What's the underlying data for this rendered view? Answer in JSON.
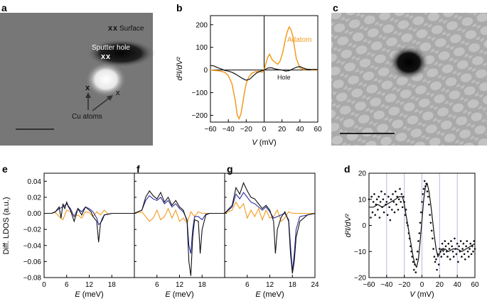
{
  "panels": {
    "a": {
      "letter": "a",
      "labels": {
        "surface": "Surface",
        "sputter_hole": "Sputter hole",
        "cu_atoms": "Cu atoms"
      },
      "markers": "x"
    },
    "b": {
      "letter": "b",
      "legend": {
        "adatom": "Adatom",
        "hole": "Hole"
      }
    },
    "c": {
      "letter": "c"
    },
    "e": {
      "letter": "e"
    },
    "f": {
      "letter": "f"
    },
    "g": {
      "letter": "g"
    },
    "d": {
      "letter": "d"
    }
  },
  "colors": {
    "adatom": "#f39a1e",
    "hole": "#111111",
    "blue": "#2b2fa0",
    "gridline": "#b8b8e8"
  },
  "chart_data": [
    {
      "id": "b",
      "type": "line",
      "xlabel": "V (mV)",
      "ylabel": "d²I/dV²",
      "xlim": [
        -60,
        60
      ],
      "ylim": [
        -230,
        240
      ],
      "xticks": [
        -60,
        -40,
        -20,
        0,
        20,
        40,
        60
      ],
      "yticks": [
        -200,
        -100,
        0,
        100,
        200
      ],
      "series": [
        {
          "name": "Adatom",
          "color": "#f39a1e",
          "x": [
            -60,
            -50,
            -44,
            -40,
            -36,
            -32,
            -30,
            -28,
            -26,
            -24,
            -22,
            -20,
            -17,
            -14,
            -10,
            -6,
            -2,
            0,
            2,
            4,
            6,
            9,
            12,
            15,
            18,
            21,
            24,
            26,
            28,
            30,
            32,
            34,
            36,
            40,
            44,
            50,
            56,
            60
          ],
          "y": [
            0,
            -4,
            -10,
            -25,
            -60,
            -140,
            -200,
            -215,
            -195,
            -150,
            -100,
            -60,
            -30,
            -15,
            -8,
            -6,
            -10,
            0,
            30,
            55,
            70,
            45,
            35,
            25,
            40,
            80,
            140,
            170,
            190,
            178,
            150,
            100,
            50,
            10,
            2,
            3,
            0,
            0
          ]
        },
        {
          "name": "Hole",
          "color": "#111111",
          "x": [
            -60,
            -56,
            -52,
            -48,
            -44,
            -40,
            -36,
            -32,
            -28,
            -24,
            -20,
            -16,
            -12,
            -8,
            -4,
            0,
            4,
            8,
            12,
            16,
            20,
            24,
            28,
            32,
            36,
            40,
            44,
            48,
            52,
            56,
            60
          ],
          "y": [
            20,
            18,
            10,
            5,
            -2,
            -5,
            -10,
            -18,
            -28,
            -38,
            -45,
            -40,
            -25,
            -12,
            -5,
            0,
            8,
            10,
            5,
            2,
            0,
            -5,
            -3,
            5,
            12,
            15,
            8,
            3,
            2,
            3,
            2
          ]
        }
      ]
    },
    {
      "id": "e",
      "type": "line",
      "xlabel": "E (meV)",
      "ylabel": "Diff. LDOS (a.u.)",
      "xlim": [
        0,
        24
      ],
      "ylim": [
        -0.08,
        0.05
      ],
      "xticks": [
        0,
        6,
        12,
        18
      ],
      "xtick_labels": [
        "0",
        "6",
        "12",
        "18"
      ],
      "yticks": [
        -0.08,
        -0.06,
        -0.04,
        -0.02,
        0.0,
        0.02,
        0.04
      ],
      "ytick_labels": [
        "−0.08",
        "−0.06",
        "−0.04",
        "−0.02",
        "0.00",
        "0.02",
        "0.04"
      ],
      "series": [
        {
          "name": "black",
          "color": "#111111",
          "x": [
            0,
            2,
            3,
            4,
            4.5,
            5,
            5.5,
            6,
            6.5,
            7,
            8,
            9,
            10,
            11,
            12,
            12.5,
            13,
            14,
            14.5,
            15,
            15.5,
            16,
            17,
            18,
            20,
            24
          ],
          "y": [
            0,
            0,
            0.002,
            0.008,
            -0.006,
            0.012,
            0.006,
            0.014,
            0.008,
            0.004,
            -0.01,
            0.006,
            -0.002,
            0.008,
            0.004,
            0.002,
            -0.004,
            -0.01,
            -0.036,
            -0.012,
            -0.008,
            -0.002,
            -0.001,
            0,
            0,
            0
          ]
        },
        {
          "name": "blue",
          "color": "#2b2fa0",
          "x": [
            0,
            2,
            3,
            4,
            5,
            6,
            7,
            8,
            9,
            10,
            11,
            12,
            13,
            14,
            14.5,
            15,
            15.5,
            16,
            17,
            18,
            20,
            24
          ],
          "y": [
            0,
            0,
            0.002,
            0.006,
            0.008,
            0.012,
            0.006,
            -0.004,
            0.006,
            0.002,
            0.008,
            0.006,
            0.002,
            -0.006,
            -0.014,
            -0.012,
            -0.006,
            -0.002,
            -0.001,
            0,
            0,
            0
          ]
        },
        {
          "name": "orange",
          "color": "#f39a1e",
          "x": [
            0,
            2,
            3,
            4,
            5,
            6,
            7,
            8,
            9,
            10,
            11,
            12,
            13,
            14,
            15,
            16,
            17,
            18,
            20,
            24
          ],
          "y": [
            0,
            0,
            0.001,
            -0.004,
            -0.008,
            0.004,
            0.002,
            -0.004,
            -0.002,
            -0.006,
            0.002,
            0.001,
            -0.004,
            0.002,
            -0.002,
            0.004,
            -0.001,
            0,
            0,
            0
          ]
        }
      ]
    },
    {
      "id": "f",
      "type": "line",
      "xlabel": "E (meV)",
      "xlim": [
        0,
        24
      ],
      "ylim": [
        -0.08,
        0.05
      ],
      "xticks": [
        0,
        6,
        12,
        18
      ],
      "xtick_labels": [
        "",
        "6",
        "12",
        "18"
      ],
      "series": [
        {
          "name": "black",
          "color": "#111111",
          "x": [
            0,
            2,
            3,
            4,
            5,
            6,
            7,
            8,
            9,
            10,
            11,
            12,
            13,
            14,
            14.5,
            15,
            15.5,
            16,
            17,
            17.5,
            18,
            19,
            20,
            22,
            24
          ],
          "y": [
            0,
            0.004,
            0.02,
            0.028,
            0.022,
            0.018,
            0.026,
            0.014,
            0.02,
            0.01,
            0.016,
            0.008,
            0.004,
            -0.01,
            -0.06,
            -0.078,
            -0.03,
            -0.008,
            -0.01,
            -0.05,
            -0.02,
            -0.002,
            0,
            0,
            0
          ]
        },
        {
          "name": "blue",
          "color": "#2b2fa0",
          "x": [
            0,
            2,
            3,
            4,
            5,
            6,
            7,
            8,
            9,
            10,
            11,
            12,
            13,
            14,
            14.5,
            15,
            15.5,
            16,
            17,
            18,
            19,
            20,
            24
          ],
          "y": [
            0,
            0.004,
            0.016,
            0.022,
            0.018,
            0.016,
            0.02,
            0.012,
            0.016,
            0.008,
            0.012,
            0.006,
            0.002,
            -0.008,
            -0.04,
            -0.05,
            -0.02,
            -0.004,
            -0.004,
            -0.008,
            -0.001,
            0,
            0
          ]
        },
        {
          "name": "orange",
          "color": "#f39a1e",
          "x": [
            0,
            2,
            3,
            4,
            5,
            6,
            7,
            8,
            9,
            10,
            11,
            12,
            13,
            14,
            15,
            16,
            17,
            18,
            20,
            24
          ],
          "y": [
            0,
            0.002,
            -0.004,
            -0.01,
            -0.006,
            0.004,
            -0.008,
            -0.004,
            0.006,
            -0.006,
            0.004,
            -0.01,
            -0.006,
            -0.012,
            0.002,
            -0.004,
            0.002,
            0,
            0,
            0
          ]
        }
      ]
    },
    {
      "id": "g",
      "type": "line",
      "xlabel": "E (meV)",
      "xlim": [
        0,
        24
      ],
      "ylim": [
        -0.08,
        0.05
      ],
      "xticks": [
        0,
        6,
        12,
        18,
        24
      ],
      "xtick_labels": [
        "",
        "6",
        "12",
        "18",
        "24"
      ],
      "series": [
        {
          "name": "black",
          "color": "#111111",
          "x": [
            0,
            2,
            3,
            4,
            5,
            6,
            7,
            8,
            9,
            10,
            11,
            12,
            13,
            13.5,
            14,
            15,
            16,
            17,
            17.5,
            18,
            18.5,
            19,
            20,
            22,
            24
          ],
          "y": [
            0,
            0.01,
            0.032,
            0.024,
            0.038,
            0.028,
            0.02,
            0.018,
            0.012,
            0.006,
            0.01,
            0.004,
            -0.01,
            -0.05,
            -0.02,
            -0.005,
            0.002,
            -0.01,
            -0.05,
            -0.075,
            -0.06,
            -0.03,
            -0.01,
            -0.002,
            0
          ]
        },
        {
          "name": "blue",
          "color": "#2b2fa0",
          "x": [
            0,
            2,
            3,
            4,
            5,
            6,
            7,
            8,
            9,
            10,
            11,
            12,
            13,
            14,
            15,
            16,
            17,
            17.5,
            18,
            18.5,
            19,
            20,
            24
          ],
          "y": [
            0,
            0.008,
            0.024,
            0.018,
            0.026,
            0.02,
            0.014,
            0.012,
            0.008,
            0.004,
            0.008,
            0.002,
            -0.006,
            -0.004,
            -0.002,
            0,
            -0.008,
            -0.04,
            -0.072,
            -0.05,
            -0.02,
            -0.004,
            0
          ]
        },
        {
          "name": "orange",
          "color": "#f39a1e",
          "x": [
            0,
            2,
            3,
            4,
            5,
            6,
            7,
            8,
            9,
            10,
            11,
            12,
            13,
            14,
            15,
            16,
            17,
            18,
            20,
            24
          ],
          "y": [
            0,
            0.004,
            0.014,
            0.006,
            0.012,
            -0.006,
            0.004,
            -0.004,
            0.006,
            -0.008,
            0.004,
            -0.006,
            -0.004,
            0.004,
            -0.01,
            -0.006,
            0.002,
            0,
            0,
            0
          ]
        }
      ]
    },
    {
      "id": "d",
      "type": "scatter",
      "xlabel": "V (mV)",
      "ylabel": "d²I/dV²",
      "xlim": [
        -60,
        60
      ],
      "ylim": [
        -20,
        20
      ],
      "xticks": [
        -60,
        -40,
        -20,
        0,
        20,
        40,
        60
      ],
      "yticks": [
        -20,
        -10,
        0,
        10,
        20
      ],
      "vlines": [
        -40,
        -20,
        0,
        20,
        40
      ],
      "points": {
        "x": [
          -60,
          -58,
          -57,
          -56,
          -55,
          -54,
          -53,
          -52,
          -51,
          -50,
          -49,
          -48,
          -47,
          -46,
          -45,
          -44,
          -43,
          -42,
          -41,
          -40,
          -39,
          -38,
          -37,
          -36,
          -35,
          -34,
          -33,
          -32,
          -31,
          -30,
          -29,
          -28,
          -27,
          -26,
          -25,
          -24,
          -23,
          -22,
          -21,
          -20,
          -19,
          -18,
          -17,
          -16,
          -15,
          -14,
          -13,
          -12,
          -11,
          -10,
          -9,
          -8,
          -7,
          -6,
          -5,
          -4,
          -3,
          -2,
          -1,
          0,
          1,
          2,
          3,
          4,
          5,
          6,
          7,
          8,
          9,
          10,
          11,
          12,
          13,
          14,
          15,
          16,
          17,
          18,
          19,
          20,
          21,
          22,
          23,
          24,
          25,
          26,
          27,
          28,
          29,
          30,
          31,
          32,
          33,
          34,
          35,
          36,
          37,
          38,
          39,
          40,
          41,
          42,
          43,
          44,
          45,
          46,
          47,
          48,
          49,
          50,
          51,
          52,
          53,
          54,
          55,
          56,
          57,
          58,
          59,
          60
        ],
        "y": [
          10,
          3,
          11,
          5,
          9,
          12,
          4,
          8,
          10,
          6,
          11,
          3,
          9,
          13,
          7,
          10,
          5,
          12,
          8,
          9,
          4,
          11,
          7,
          2,
          10,
          6,
          12,
          9,
          5,
          13,
          8,
          11,
          6,
          10,
          14,
          9,
          12,
          7,
          11,
          9,
          4,
          6,
          1,
          0,
          -3,
          -5,
          -8,
          -10,
          -12,
          -14,
          -17,
          -15,
          -18,
          -13,
          -10,
          -6,
          -3,
          1,
          5,
          9,
          12,
          14,
          17,
          15,
          16,
          13,
          11,
          8,
          4,
          1,
          -2,
          -5,
          -9,
          -12,
          -14,
          -13,
          -17,
          -11,
          -15,
          -9,
          -10,
          -12,
          -7,
          -9,
          -11,
          -6,
          -8,
          -10,
          -12,
          -7,
          -9,
          -13,
          -6,
          -8,
          -10,
          -12,
          -5,
          -9,
          -11,
          -7,
          -14,
          -8,
          -10,
          -6,
          -12,
          -9,
          -7,
          -11,
          -13,
          -8,
          -6,
          -10,
          -12,
          -9,
          -7,
          -11,
          -8,
          -10,
          -6,
          -9
        ]
      },
      "fit": {
        "x": [
          -60,
          -55,
          -50,
          -45,
          -40,
          -35,
          -30,
          -26,
          -22,
          -20,
          -18,
          -16,
          -14,
          -12,
          -10,
          -8,
          -6,
          -4,
          -2,
          0,
          2,
          4,
          6,
          8,
          10,
          12,
          14,
          16,
          18,
          20,
          22,
          24,
          26,
          30,
          35,
          40,
          45,
          50,
          55,
          60
        ],
        "y": [
          7,
          7,
          8,
          7,
          8,
          9,
          10,
          11,
          11,
          8,
          4,
          0,
          -4,
          -8,
          -12,
          -15,
          -16,
          -13,
          -6,
          2,
          10,
          15,
          16,
          13,
          8,
          2,
          -4,
          -9,
          -12,
          -11,
          -9,
          -10,
          -9,
          -10,
          -9,
          -9,
          -10,
          -9,
          -8,
          -7
        ]
      }
    }
  ]
}
